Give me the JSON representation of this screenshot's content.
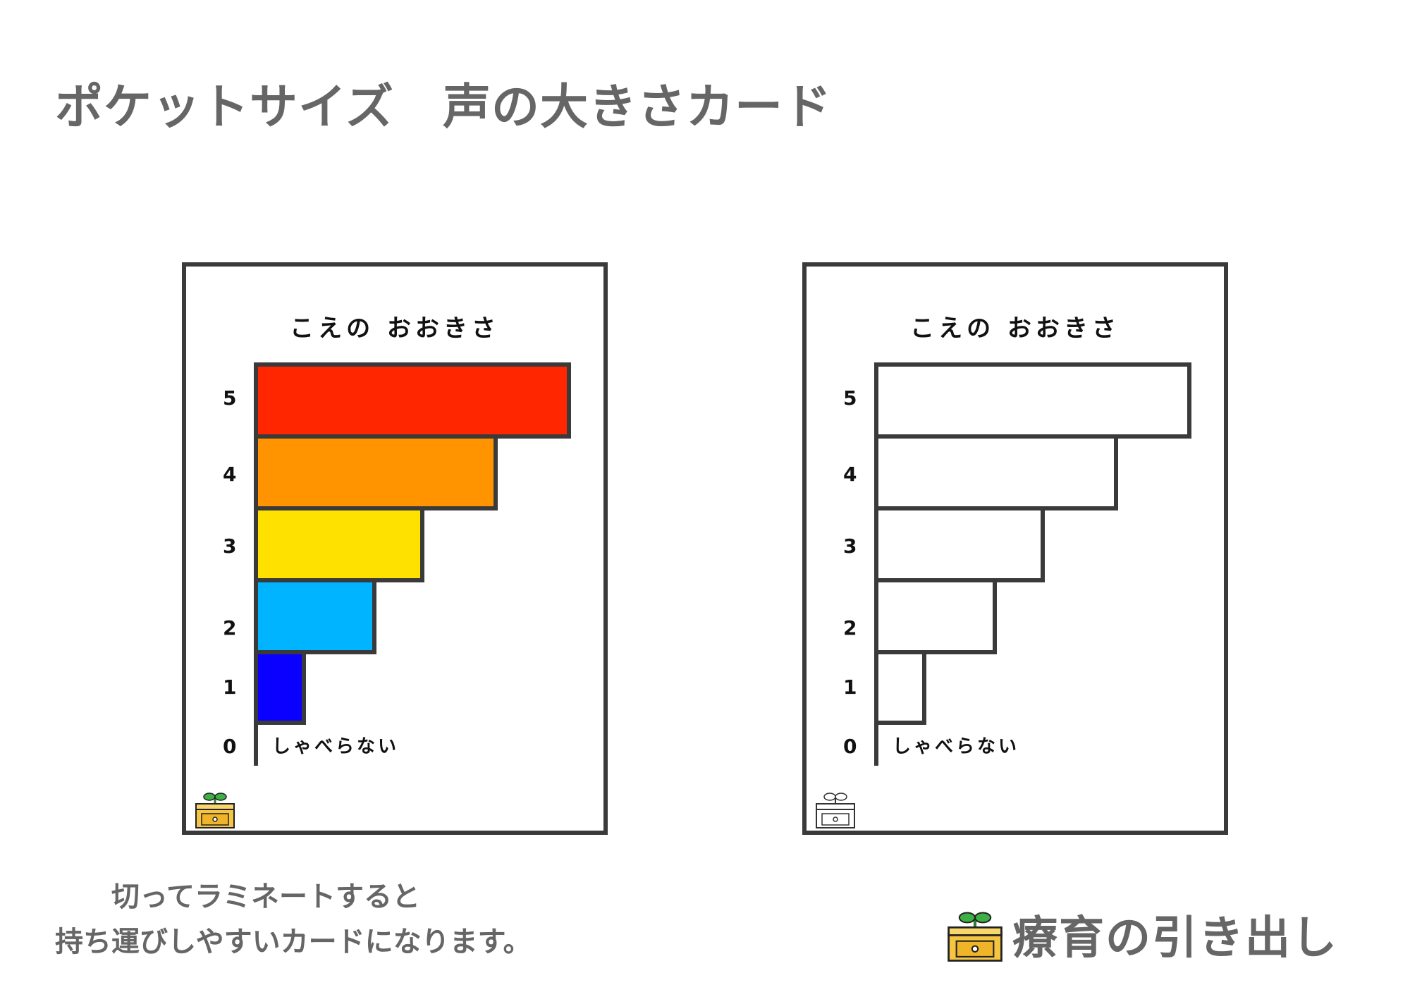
{
  "title": "ポケットサイズ　声の大きさカード",
  "card_title": "こえの おおきさ",
  "zero_label": "しゃべらない",
  "levels": [
    {
      "num": "5",
      "value": 5,
      "color": "#ff2600"
    },
    {
      "num": "4",
      "value": 4,
      "color": "#ff9300"
    },
    {
      "num": "3",
      "value": 3,
      "color": "#ffe100"
    },
    {
      "num": "2",
      "value": 2,
      "color": "#00b4ff"
    },
    {
      "num": "1",
      "value": 1,
      "color": "#0a00ff"
    },
    {
      "num": "0",
      "value": 0,
      "color": ""
    }
  ],
  "instructions": "　　切ってラミネートすると\n持ち運びしやすいカードになります。",
  "brand": "療育の引き出し",
  "colors": {
    "outline": "#3a3a3a",
    "text_gray": "#666666",
    "box": "#f5c542",
    "sprout": "#3cb043"
  }
}
